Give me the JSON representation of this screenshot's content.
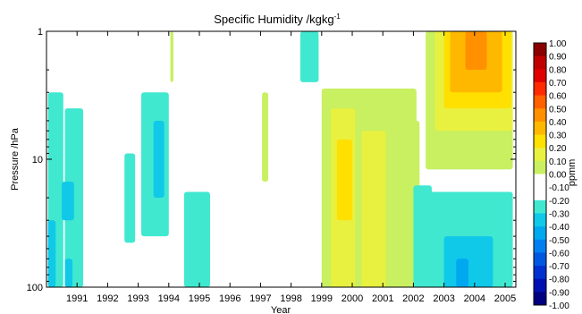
{
  "chart_data": {
    "type": "heatmap",
    "title": "Specific Humidity /kgkg",
    "title_superscript": "-1",
    "xlabel": "Year",
    "ylabel": "Pressure /hPa",
    "x_ticks": [
      "1991",
      "1992",
      "1993",
      "1994",
      "1995",
      "1996",
      "1997",
      "1998",
      "1999",
      "2000",
      "2001",
      "2002",
      "2003",
      "2004",
      "2005"
    ],
    "x_range": [
      1990.0,
      2005.35
    ],
    "y_scale": "log",
    "y_range": [
      100,
      1
    ],
    "y_ticks": [
      "1",
      "10",
      "100"
    ],
    "colorbar": {
      "unit_label": "ppmm",
      "levels": [
        "1.00",
        "0.90",
        "0.80",
        "0.70",
        "0.60",
        "0.50",
        "0.40",
        "0.30",
        "0.20",
        "0.10",
        "0.00",
        "-0.10",
        "-0.20",
        "-0.30",
        "-0.40",
        "-0.50",
        "-0.60",
        "-0.70",
        "-0.80",
        "-0.90",
        "-1.00"
      ],
      "colors": [
        "#8b0000",
        "#c00000",
        "#e00000",
        "#ff2a00",
        "#ff6000",
        "#ff9000",
        "#ffb800",
        "#ffe000",
        "#e8f040",
        "#c8f060",
        "#ffffff",
        "#ffffff",
        "#40e8d0",
        "#10c8e8",
        "#00a8f0",
        "#0080f0",
        "#0058e0",
        "#0030d0",
        "#0010b0",
        "#000080"
      ]
    },
    "regions": [
      {
        "x0": 1990.05,
        "x1": 1990.55,
        "p0": 3,
        "p1": 100,
        "level": -0.2
      },
      {
        "x0": 1990.6,
        "x1": 1991.2,
        "p0": 4,
        "p1": 100,
        "level": -0.2
      },
      {
        "x0": 1990.5,
        "x1": 1990.9,
        "p0": 15,
        "p1": 30,
        "level": -0.3
      },
      {
        "x0": 1990.05,
        "x1": 1990.3,
        "p0": 30,
        "p1": 100,
        "level": -0.3
      },
      {
        "x0": 1990.6,
        "x1": 1990.85,
        "p0": 60,
        "p1": 100,
        "level": -0.3
      },
      {
        "x0": 1992.55,
        "x1": 1992.9,
        "p0": 9,
        "p1": 45,
        "level": -0.2
      },
      {
        "x0": 1993.1,
        "x1": 1994.0,
        "p0": 3,
        "p1": 40,
        "level": -0.2
      },
      {
        "x0": 1993.5,
        "x1": 1993.85,
        "p0": 5,
        "p1": 20,
        "level": -0.3
      },
      {
        "x0": 1994.5,
        "x1": 1995.35,
        "p0": 18,
        "p1": 100,
        "level": -0.2
      },
      {
        "x0": 1994.05,
        "x1": 1994.15,
        "p0": 1,
        "p1": 2.5,
        "level": 0.1
      },
      {
        "x0": 1997.05,
        "x1": 1997.25,
        "p0": 3,
        "p1": 15,
        "level": 0.1
      },
      {
        "x0": 1998.3,
        "x1": 1998.9,
        "p0": 1,
        "p1": 2.5,
        "level": -0.2
      },
      {
        "x0": 1999.0,
        "x1": 2002.1,
        "p0": 2.8,
        "p1": 100,
        "level": 0.1
      },
      {
        "x0": 1999.3,
        "x1": 2000.1,
        "p0": 4,
        "p1": 100,
        "level": 0.2
      },
      {
        "x0": 1999.5,
        "x1": 2000.0,
        "p0": 7,
        "p1": 30,
        "level": 0.3
      },
      {
        "x0": 2000.3,
        "x1": 2001.1,
        "p0": 6,
        "p1": 100,
        "level": 0.2
      },
      {
        "x0": 2001.2,
        "x1": 2002.2,
        "p0": 5,
        "p1": 100,
        "level": 0.1
      },
      {
        "x0": 2002.0,
        "x1": 2002.6,
        "p0": 16,
        "p1": 100,
        "level": -0.2
      },
      {
        "x0": 2002.4,
        "x1": 2005.25,
        "p0": 1,
        "p1": 12,
        "level": 0.1
      },
      {
        "x0": 2002.7,
        "x1": 2005.25,
        "p0": 1,
        "p1": 6,
        "level": 0.2
      },
      {
        "x0": 2003.0,
        "x1": 2005.2,
        "p0": 1,
        "p1": 4,
        "level": 0.3
      },
      {
        "x0": 2003.2,
        "x1": 2004.9,
        "p0": 1,
        "p1": 3,
        "level": 0.4
      },
      {
        "x0": 2003.7,
        "x1": 2004.4,
        "p0": 1,
        "p1": 2,
        "level": 0.5
      },
      {
        "x0": 2002.5,
        "x1": 2005.25,
        "p0": 18,
        "p1": 100,
        "level": -0.2
      },
      {
        "x0": 2003.0,
        "x1": 2004.6,
        "p0": 40,
        "p1": 100,
        "level": -0.3
      },
      {
        "x0": 2003.4,
        "x1": 2003.8,
        "p0": 60,
        "p1": 100,
        "level": -0.4
      }
    ]
  }
}
